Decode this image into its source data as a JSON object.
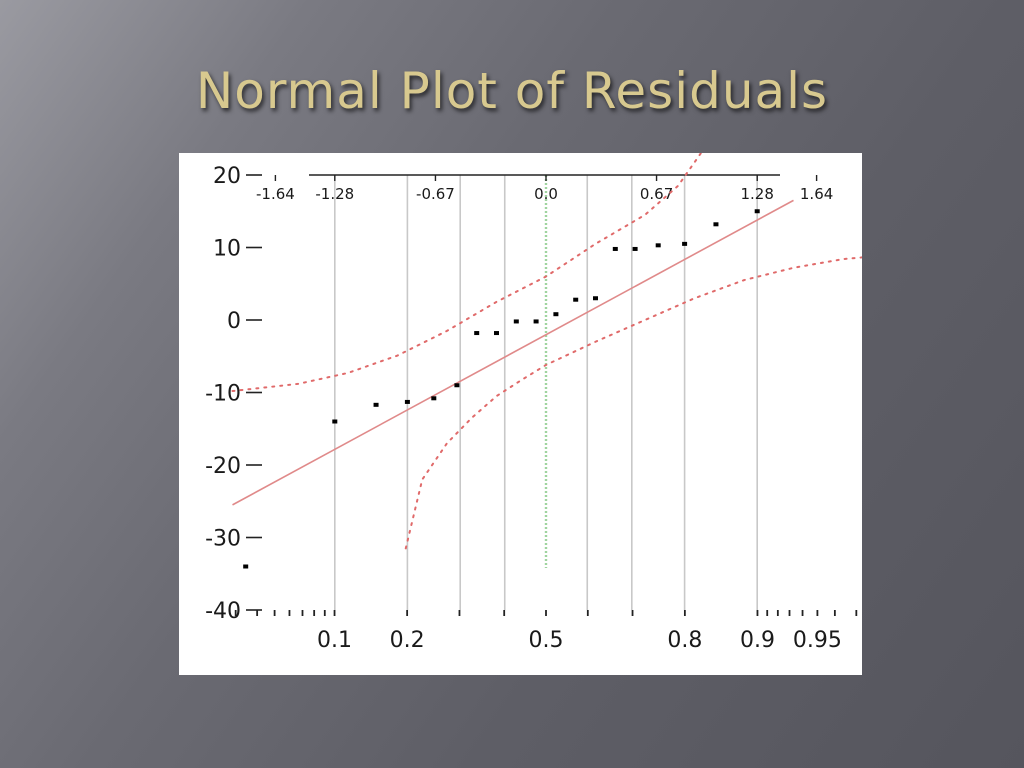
{
  "title": "Normal Plot of Residuals",
  "chart_data": {
    "type": "scatter",
    "title": "Normal Plot of Residuals",
    "xlabel": "",
    "ylabel": "",
    "ylim": [
      -40,
      20
    ],
    "y_ticks": [
      20,
      10,
      0,
      -10,
      -20,
      -30,
      -40
    ],
    "y_tick_labels": [
      "20",
      "10",
      "0",
      "-10",
      "-20",
      "-30",
      "-40"
    ],
    "bottom_axis": {
      "scale": "normal-probability",
      "labeled_ticks": [
        0.1,
        0.2,
        0.5,
        0.8,
        0.9,
        0.95
      ],
      "tick_labels": [
        "0.1",
        "0.2",
        "0.5",
        "0.8",
        "0.9",
        "0.95"
      ],
      "minor_ticks": [
        0.03,
        0.04,
        0.05,
        0.06,
        0.07,
        0.08,
        0.09,
        0.3,
        0.4,
        0.6,
        0.7,
        0.91,
        0.92,
        0.93,
        0.94,
        0.96,
        0.97
      ]
    },
    "top_axis": {
      "scale": "normal-quantile",
      "ticks": [
        -1.64,
        -1.28,
        -0.67,
        0.0,
        0.67,
        1.28,
        1.64
      ],
      "tick_labels": [
        "-1.64",
        "-1.28",
        "-0.67",
        "0.0",
        "0.67",
        "1.28",
        "1.64"
      ]
    },
    "gridlines_quantile": [
      -1.28,
      -0.84,
      -0.52,
      -0.25,
      0.25,
      0.52,
      0.84,
      1.28
    ],
    "center_line_quantile": 0.0,
    "points": [
      {
        "x": -1.82,
        "y": -34
      },
      {
        "x": -1.28,
        "y": -14
      },
      {
        "x": -1.03,
        "y": -11.7
      },
      {
        "x": -0.84,
        "y": -11.3
      },
      {
        "x": -0.68,
        "y": -10.8
      },
      {
        "x": -0.54,
        "y": -9
      },
      {
        "x": -0.42,
        "y": -1.8
      },
      {
        "x": -0.3,
        "y": -1.8
      },
      {
        "x": -0.18,
        "y": -0.2
      },
      {
        "x": -0.06,
        "y": -0.2
      },
      {
        "x": 0.06,
        "y": 0.8
      },
      {
        "x": 0.18,
        "y": 2.8
      },
      {
        "x": 0.3,
        "y": 3
      },
      {
        "x": 0.42,
        "y": 9.8
      },
      {
        "x": 0.54,
        "y": 9.8
      },
      {
        "x": 0.68,
        "y": 10.3
      },
      {
        "x": 0.84,
        "y": 10.5
      },
      {
        "x": 1.03,
        "y": 13.2
      },
      {
        "x": 1.28,
        "y": 15
      }
    ],
    "fit_line": {
      "x": [
        -1.9,
        1.5
      ],
      "y": [
        -25.5,
        16.5
      ]
    },
    "confidence_upper": {
      "x": [
        -1.9,
        -1.5,
        -1.2,
        -0.9,
        -0.6,
        -0.3,
        0.0,
        0.3,
        0.6,
        0.8,
        1.0
      ],
      "y": [
        -9.8,
        -8.8,
        -7.3,
        -4.9,
        -1.5,
        2.5,
        6.0,
        10.5,
        14.5,
        18.5,
        25
      ]
    },
    "confidence_lower": {
      "x": [
        -0.85,
        -0.75,
        -0.6,
        -0.45,
        -0.3,
        -0.15,
        0.0,
        0.3,
        0.6,
        0.9,
        1.2,
        1.5,
        1.8,
        2.1
      ],
      "y": [
        -31.5,
        -22,
        -17,
        -13.5,
        -10.5,
        -8.3,
        -6.2,
        -3.0,
        0.0,
        3.0,
        5.5,
        7.2,
        8.4,
        9.0
      ]
    },
    "grid": true,
    "legend": "none",
    "colors": {
      "points": "#000000",
      "fit_line": "#e08a8a",
      "confidence": "#e06a6a",
      "center_line": "#9fd49f",
      "grid": "#c8c8c8"
    }
  }
}
